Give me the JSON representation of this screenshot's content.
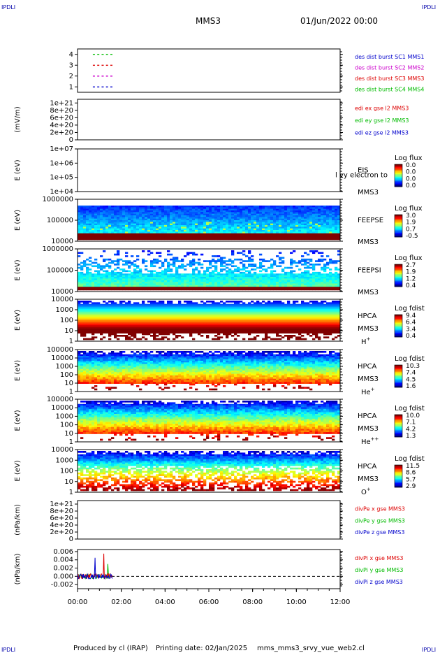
{
  "header": {
    "corner_label": "IPDLI",
    "spacecraft": "MMS3",
    "datetime": "01/Jun/2022 00:00"
  },
  "footer": {
    "produced_by": "Produced by cl (IRAP)",
    "printing_date": "Printing date: 02/Jan/2025",
    "filename": "mms_mms3_srvy_vue_web2.cl"
  },
  "chart_data": {
    "type": "multi-panel time series",
    "time_axis": {
      "range_hours": [
        0,
        12
      ],
      "tick_labels": [
        "00:00",
        "02:00",
        "04:00",
        "06:00",
        "08:00",
        "10:00",
        "12:00"
      ]
    },
    "panels": [
      {
        "id": "burst",
        "type": "scatter",
        "ylabel": "",
        "ylim": [
          0.5,
          4.5
        ],
        "yticks": [
          "1",
          "2",
          "3",
          "4"
        ],
        "legend": [
          {
            "text": "des dist burst SC1 MMS1",
            "color": "#0000cc"
          },
          {
            "text": "des dist burst SC2 MMS2",
            "color": "#cc00cc"
          },
          {
            "text": "des dist burst SC3 MMS3",
            "color": "#dd0000"
          },
          {
            "text": "des dist burst SC4 MMS4",
            "color": "#00bb00"
          }
        ],
        "series": [
          {
            "y": 1,
            "color": "#0000cc",
            "x_hours": [
              0.7,
              0.9,
              1.1,
              1.3,
              1.5
            ]
          },
          {
            "y": 2,
            "color": "#cc00cc",
            "x_hours": [
              0.7,
              0.9,
              1.1,
              1.3,
              1.5
            ]
          },
          {
            "y": 3,
            "color": "#dd0000",
            "x_hours": [
              0.7,
              0.9,
              1.1,
              1.3,
              1.5
            ]
          },
          {
            "y": 4,
            "color": "#00bb00",
            "x_hours": [
              0.7,
              0.9,
              1.1,
              1.3,
              1.5
            ]
          }
        ]
      },
      {
        "id": "edi",
        "type": "line",
        "ylabel": "(mV/m)",
        "ylim": [
          0,
          1.1e+21
        ],
        "yticks": [
          "0",
          "2e+20",
          "4e+20",
          "6e+20",
          "8e+20",
          "1e+21"
        ],
        "legend": [
          {
            "text": "edi ex gse l2 MMS3",
            "color": "#dd0000"
          },
          {
            "text": "edi ey gse l2 MMS3",
            "color": "#00bb00"
          },
          {
            "text": "edi ez gse l2 MMS3",
            "color": "#0000cc"
          }
        ]
      },
      {
        "id": "eis",
        "type": "heatmap",
        "ylabel": "E (eV)",
        "yticks": [
          "1e+04",
          "1e+05",
          "1e+06",
          "1e+07"
        ],
        "instrument": "EIS",
        "sc": "MMS3",
        "overlay": "l vy electron to",
        "colorbar_title": "Log flux",
        "colorbar_ticks": [
          "0.0",
          "0.0",
          "0.0",
          "0.0"
        ],
        "density": 0.0
      },
      {
        "id": "feepse",
        "type": "heatmap",
        "ylabel": "E (eV)",
        "yticks": [
          "10000",
          "100000",
          "1000000"
        ],
        "instrument": "FEEPSE",
        "sc": "MMS3",
        "colorbar_title": "Log flux",
        "colorbar_ticks": [
          "3.0",
          "1.9",
          "0.7",
          "-0.5"
        ],
        "density": 1.0
      },
      {
        "id": "feepsi",
        "type": "heatmap",
        "ylabel": "E (eV)",
        "yticks": [
          "10000",
          "100000",
          "1000000"
        ],
        "instrument": "FEEPSI",
        "sc": "MMS3",
        "colorbar_title": "Log flux",
        "colorbar_ticks": [
          "2.7",
          "1.9",
          "1.2",
          "0.4"
        ],
        "density": 0.65
      },
      {
        "id": "hpca_h",
        "type": "heatmap",
        "ylabel": "E (eV)",
        "yticks": [
          "1",
          "10",
          "100",
          "1000",
          "10000"
        ],
        "instrument": "HPCA",
        "sc": "MMS3",
        "species": "H",
        "species_sup": "+",
        "colorbar_title": "Log fdist",
        "colorbar_ticks": [
          "9.4",
          "6.4",
          "3.4",
          "0.4"
        ],
        "density": 0.9
      },
      {
        "id": "hpca_he1",
        "type": "heatmap",
        "ylabel": "E (eV)",
        "yticks": [
          "1",
          "10",
          "100",
          "1000",
          "10000",
          "100000"
        ],
        "instrument": "HPCA",
        "sc": "MMS3",
        "species": "He",
        "species_sup": "+",
        "colorbar_title": "Log fdist",
        "colorbar_ticks": [
          "10.3",
          "7.4",
          "4.5",
          "1.6"
        ],
        "density": 0.75
      },
      {
        "id": "hpca_he2",
        "type": "heatmap",
        "ylabel": "E (eV)",
        "yticks": [
          "1",
          "10",
          "100",
          "1000",
          "10000",
          "100000"
        ],
        "instrument": "HPCA",
        "sc": "MMS3",
        "species": "He",
        "species_sup": "++",
        "colorbar_title": "Log fdist",
        "colorbar_ticks": [
          "10.0",
          "7.1",
          "4.2",
          "1.3"
        ],
        "density": 0.8
      },
      {
        "id": "hpca_o",
        "type": "heatmap",
        "ylabel": "E (eV)",
        "yticks": [
          "1",
          "10",
          "100",
          "1000",
          "10000"
        ],
        "instrument": "HPCA",
        "sc": "MMS3",
        "species": "O",
        "species_sup": "+",
        "colorbar_title": "Log fdist",
        "colorbar_ticks": [
          "11.5",
          "8.6",
          "5.7",
          "2.9"
        ],
        "density": 0.75
      },
      {
        "id": "divpe",
        "type": "line",
        "ylabel": "(nPa/km)",
        "ylim": [
          0,
          1.1e+21
        ],
        "yticks": [
          "0",
          "2e+20",
          "4e+20",
          "6e+20",
          "8e+20",
          "1e+21"
        ],
        "legend": [
          {
            "text": "divPe x gse MMS3",
            "color": "#dd0000"
          },
          {
            "text": "divPe y gse MMS3",
            "color": "#00bb00"
          },
          {
            "text": "divPe z gse MMS3",
            "color": "#0000cc"
          }
        ]
      },
      {
        "id": "divpi",
        "type": "line",
        "ylabel": "(nPa/km)",
        "ylim": [
          -0.003,
          0.0065
        ],
        "yticks": [
          "-0.002",
          "0.000",
          "0.002",
          "0.004",
          "0.006"
        ],
        "legend": [
          {
            "text": "divPi x gse MMS3",
            "color": "#dd0000"
          },
          {
            "text": "divPi y gse MMS3",
            "color": "#00bb00"
          },
          {
            "text": "divPi z gse MMS3",
            "color": "#0000cc"
          }
        ],
        "data_time_range_hours": [
          0.0,
          1.6
        ],
        "peak_values": {
          "red": 0.0055,
          "blue": 0.0045,
          "green": 0.003
        }
      }
    ]
  }
}
